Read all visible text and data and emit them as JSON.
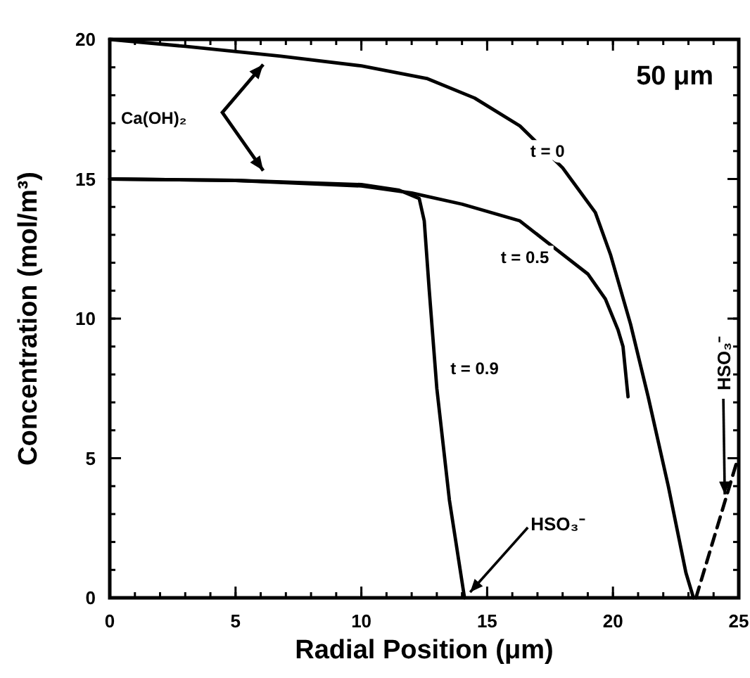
{
  "chart_data": {
    "type": "line",
    "xlabel": "Radial Position (μm)",
    "ylabel": "Concentration (mol/m³)",
    "xlim": [
      0,
      25
    ],
    "ylim": [
      0,
      20
    ],
    "xticks": [
      0,
      5,
      10,
      15,
      20,
      25
    ],
    "yticks": [
      0,
      5,
      10,
      15,
      20
    ],
    "grid": false,
    "marker": "none",
    "line_style": "solid",
    "series": [
      {
        "name": "t = 0",
        "color": "#000000",
        "x": [
          0,
          3,
          6.8,
          10,
          12.6,
          14.5,
          16.3,
          18,
          19.3,
          19.9,
          20.7,
          21.4,
          22.2,
          22.9,
          23.2
        ],
        "values": [
          20,
          19.75,
          19.4,
          19.05,
          18.6,
          17.9,
          16.9,
          15.4,
          13.8,
          12.3,
          9.8,
          7.2,
          4,
          0.9,
          0
        ]
      },
      {
        "name": "t = 0.5",
        "color": "#000000",
        "x": [
          0,
          5,
          10,
          12,
          14,
          16.3,
          18,
          19,
          19.7,
          20.2,
          20.4,
          20.6
        ],
        "values": [
          15,
          14.95,
          14.75,
          14.5,
          14.1,
          13.5,
          12.3,
          11.6,
          10.7,
          9.6,
          9,
          7.2
        ]
      },
      {
        "name": "t = 0.9",
        "color": "#000000",
        "x": [
          0,
          5,
          10,
          11.5,
          12.3,
          12.5,
          12.7,
          13,
          13.5,
          14.1
        ],
        "values": [
          15,
          14.95,
          14.8,
          14.6,
          14.3,
          13.5,
          11,
          7.5,
          3.5,
          0
        ]
      },
      {
        "type": "line",
        "line_style": "dashed",
        "color": "#000000",
        "x": [
          23.3,
          24.9
        ],
        "values": [
          0,
          4.8
        ]
      }
    ],
    "annotations": [
      "50 μm",
      "Ca(OH)₂",
      {
        "text": "HSO₃⁻",
        "x": 14.1,
        "y": 0
      },
      {
        "text": "HSO₃⁻",
        "x": 24.5,
        "y": 3.5
      }
    ]
  }
}
